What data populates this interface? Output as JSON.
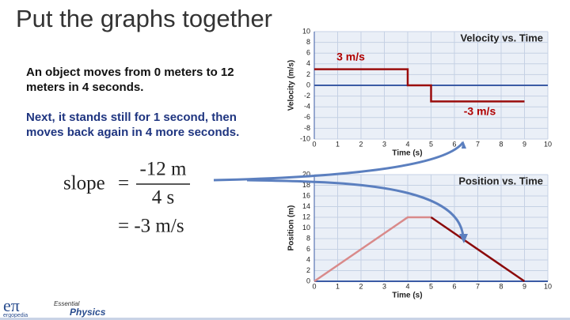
{
  "slide": {
    "title": "Put the graphs together",
    "paragraphs": [
      "An object moves from 0 meters to 12 meters in 4 seconds.",
      "Next, it stands still for 1 second, then moves back again in 4 more seconds."
    ]
  },
  "formula": {
    "lhs": "slope",
    "equals": "=",
    "numerator": "-12 m",
    "denominator": "4 s",
    "result": "= -3 m/s"
  },
  "logo": {
    "symbol": "eπ",
    "name": "ergopedia",
    "series_top": "Essential",
    "series_bottom": "Physics"
  },
  "chart_data": [
    {
      "type": "line",
      "title": "Velocity vs. Time",
      "xlabel": "Time (s)",
      "ylabel": "Velocity (m/s)",
      "xlim": [
        0,
        10
      ],
      "xticks": [
        0,
        1,
        2,
        3,
        4,
        5,
        6,
        7,
        8,
        9,
        10
      ],
      "ylim": [
        -10,
        10
      ],
      "yticks": [
        -10,
        -8,
        -6,
        -4,
        -2,
        0,
        2,
        4,
        6,
        8,
        10
      ],
      "grid": true,
      "series": [
        {
          "color": "#9b0d0d",
          "x": [
            0,
            4,
            4,
            5,
            5,
            9
          ],
          "values": [
            3,
            3,
            0,
            0,
            -3,
            -3
          ]
        }
      ],
      "annotations": [
        "3 m/s",
        "-3 m/s"
      ]
    },
    {
      "type": "line",
      "title": "Position vs. Time",
      "xlabel": "Time (s)",
      "ylabel": "Position (m)",
      "xlim": [
        0,
        10
      ],
      "xticks": [
        0,
        1,
        2,
        3,
        4,
        5,
        6,
        7,
        8,
        9,
        10
      ],
      "ylim": [
        0,
        20
      ],
      "yticks": [
        0,
        2,
        4,
        6,
        8,
        10,
        12,
        14,
        16,
        18,
        20
      ],
      "grid": true,
      "series": [
        {
          "color": "#d98a8a",
          "x": [
            0,
            4,
            5
          ],
          "values": [
            0,
            12,
            12
          ]
        },
        {
          "color": "#8b0a0a",
          "x": [
            5,
            9
          ],
          "values": [
            12,
            0
          ]
        }
      ]
    }
  ]
}
